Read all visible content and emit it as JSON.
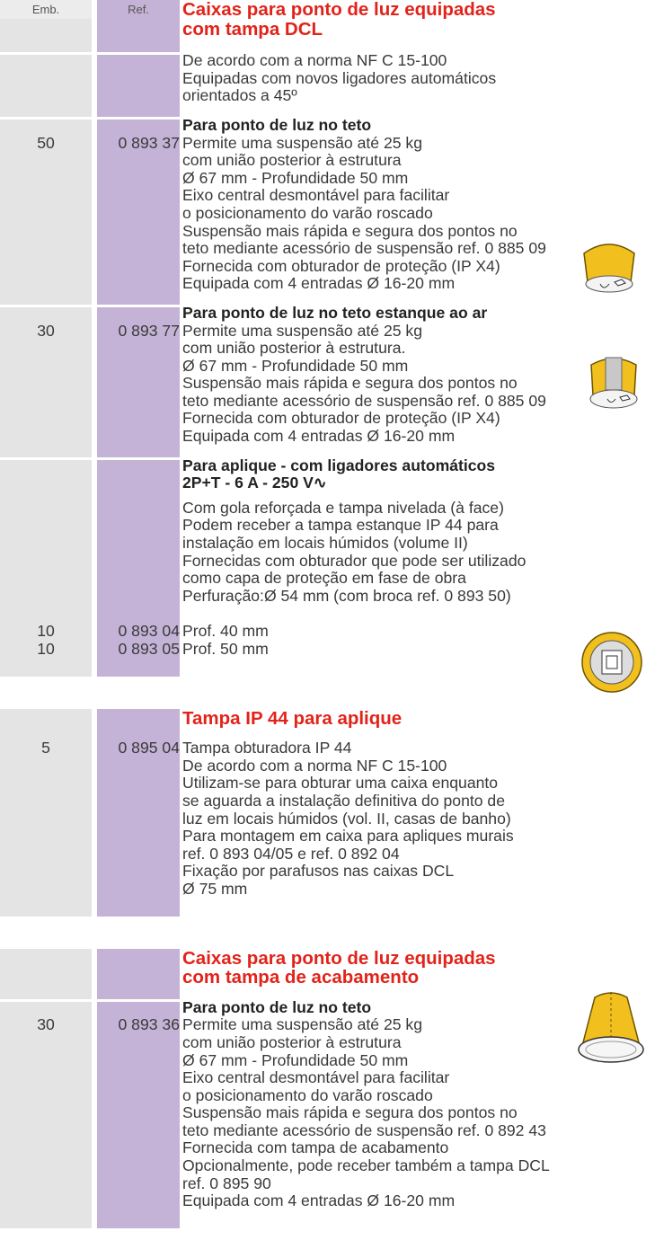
{
  "header": {
    "emb": "Emb.",
    "ref": "Ref."
  },
  "blocks": [
    {
      "title": [
        "Caixas para ponto de luz equipadas",
        "com tampa DCL"
      ],
      "groups": [
        {
          "heading": [],
          "items": [
            {
              "text": "De acordo com a norma NF C 15-100"
            },
            {
              "text": "Equipadas com novos ligadores automáticos"
            },
            {
              "text": "orientados a 45º"
            }
          ]
        },
        {
          "heading": [
            "Para ponto de luz no teto"
          ],
          "items": [
            {
              "emb": "50",
              "ref": "0 893 37",
              "text": "Permite uma suspensão até 25 kg"
            },
            {
              "text": "com união posterior à estrutura"
            },
            {
              "text": "Ø 67 mm - Profundidade 50 mm"
            },
            {
              "text": "Eixo central desmontável para facilitar"
            },
            {
              "text": "o posicionamento do varão roscado"
            },
            {
              "text": "Suspensão mais rápida e segura dos pontos no"
            },
            {
              "text": "teto mediante acessório de suspensão ref. 0 885 09"
            },
            {
              "text": "Fornecida com obturador de proteção (IP X4)"
            },
            {
              "text": "Equipada com 4 entradas Ø 16-20 mm"
            }
          ]
        },
        {
          "heading": [
            "Para ponto de luz no teto estanque ao ar"
          ],
          "items": [
            {
              "emb": "30",
              "ref": "0 893 77",
              "text": "Permite uma suspensão até 25 kg"
            },
            {
              "text": "com união posterior à estrutura."
            },
            {
              "text": "Ø 67 mm - Profundidade 50 mm"
            },
            {
              "text": "Suspensão mais rápida e segura dos pontos no"
            },
            {
              "text": "teto mediante acessório de suspensão ref. 0 885 09"
            },
            {
              "text": "Fornecida com obturador de proteção (IP X4)"
            },
            {
              "text": "Equipada com 4 entradas Ø 16-20 mm"
            }
          ]
        },
        {
          "heading": [
            "Para aplique - com ligadores automáticos",
            "2P+T - 6 A - 250 V∿"
          ],
          "items": [
            {
              "text": "Com gola reforçada e tampa nivelada (à face)"
            },
            {
              "text": "Podem receber a tampa estanque IP 44 para"
            },
            {
              "text": "instalação em locais húmidos (volume II)"
            },
            {
              "text": "Fornecidas com obturador que pode ser utilizado"
            },
            {
              "text": "como capa de proteção em fase de obra"
            },
            {
              "text": "Perfuração:Ø 54 mm (com broca ref. 0 893 50)"
            },
            {
              "emb": "10",
              "ref": "0 893 04",
              "text": "Prof. 40 mm"
            },
            {
              "emb": "10",
              "ref": "0 893 05",
              "text": "Prof. 50 mm"
            }
          ]
        }
      ]
    },
    {
      "title": [
        "Tampa IP 44 para aplique"
      ],
      "groups": [
        {
          "heading": [],
          "items": [
            {
              "emb": "5",
              "ref": "0 895 04",
              "text": "Tampa obturadora IP 44"
            },
            {
              "text": "De acordo com a norma NF C 15-100"
            },
            {
              "text": "Utilizam-se para obturar uma caixa enquanto"
            },
            {
              "text": "se aguarda a instalação definitiva do ponto de"
            },
            {
              "text": "luz em locais húmidos (vol. II, casas de banho)"
            },
            {
              "text": "Para montagem em caixa para apliques murais"
            },
            {
              "text": "ref. 0 893 04/05 e ref. 0 892 04"
            },
            {
              "text": "Fixação por parafusos nas caixas DCL"
            },
            {
              "text": "Ø 75 mm"
            }
          ]
        }
      ]
    },
    {
      "title": [
        "Caixas para ponto de luz equipadas",
        "com tampa de acabamento"
      ],
      "groups": [
        {
          "heading": [
            "Para ponto de luz no teto"
          ],
          "items": [
            {
              "emb": "30",
              "ref": "0 893 36",
              "text": "Permite uma suspensão até 25 kg"
            },
            {
              "text": "com união posterior à estrutura"
            },
            {
              "text": "Ø 67 mm - Profundidade 50 mm"
            },
            {
              "text": "Eixo central desmontável para facilitar"
            },
            {
              "text": "o posicionamento do varão roscado"
            },
            {
              "text": "Suspensão mais rápida e segura dos pontos no"
            },
            {
              "text": "teto mediante acessório de suspensão ref. 0 892 43"
            },
            {
              "text": "Fornecida com tampa de acabamento"
            },
            {
              "text": "Opcionalmente, pode receber também a tampa DCL"
            },
            {
              "text": "ref. 0 895 90"
            },
            {
              "text": "Equipada com 4 entradas Ø 16-20 mm"
            }
          ]
        }
      ]
    }
  ]
}
